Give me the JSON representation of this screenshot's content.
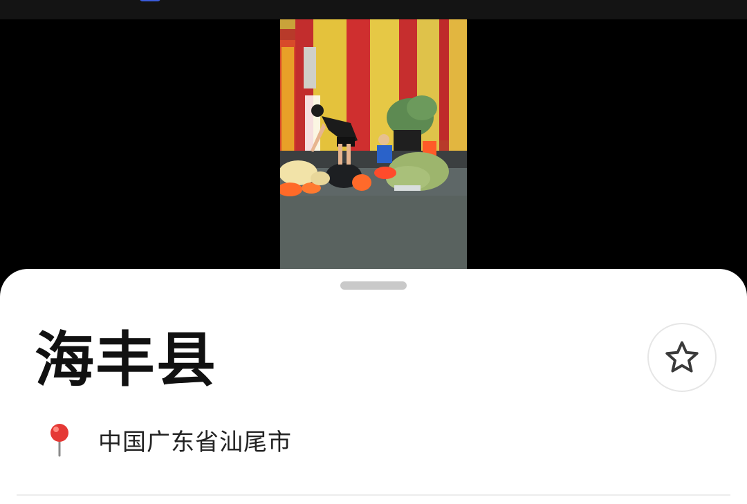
{
  "place": {
    "title": "海丰县",
    "address": "中国广东省汕尾市"
  },
  "icons": {
    "favorite": "star-outline-icon",
    "location": "map-pin-icon"
  },
  "colors": {
    "sheet_background": "#ffffff",
    "title_text": "#111111",
    "pin_red": "#e53935",
    "video_background": "#000000"
  }
}
